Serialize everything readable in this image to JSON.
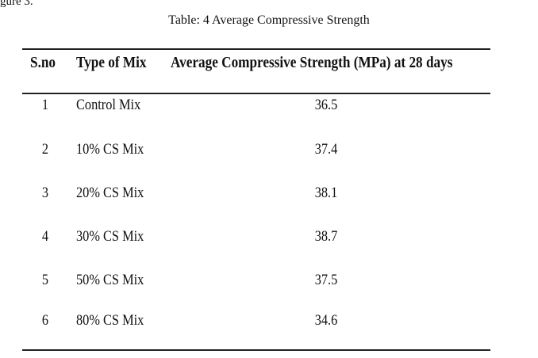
{
  "fragment_text": "gure 3.",
  "table": {
    "caption": "Table: 4 Average Compressive Strength",
    "headers": {
      "sno": "S.no",
      "type": "Type of Mix",
      "strength": "Average Compressive Strength (MPa) at 28 days"
    },
    "rows": [
      {
        "sno": "1",
        "type": "Control Mix",
        "value": "36.5"
      },
      {
        "sno": "2",
        "type": "10% CS Mix",
        "value": "37.4"
      },
      {
        "sno": "3",
        "type": "20% CS Mix",
        "value": "38.1"
      },
      {
        "sno": "4",
        "type": "30% CS Mix",
        "value": "38.7"
      },
      {
        "sno": "5",
        "type": "50% CS Mix",
        "value": "37.5"
      },
      {
        "sno": "6",
        "type": "80% CS Mix",
        "value": "34.6"
      }
    ]
  }
}
